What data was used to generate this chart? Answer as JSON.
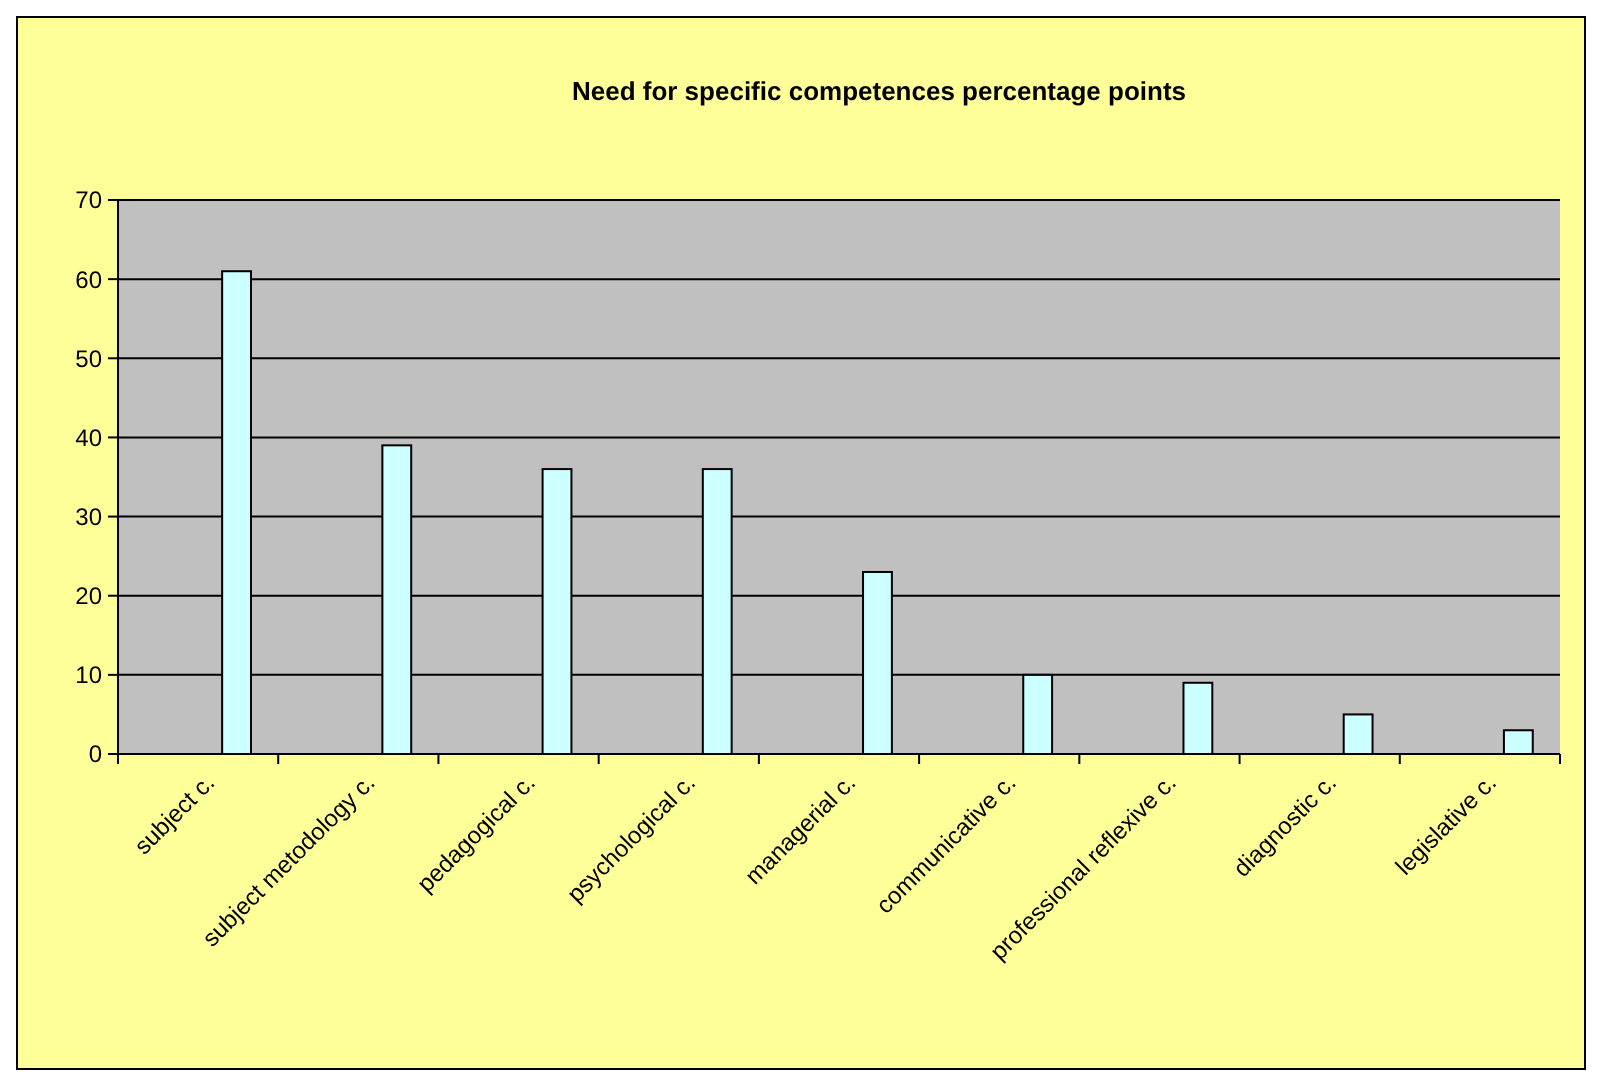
{
  "chart_data": {
    "type": "bar",
    "title": "Need for specific competences percentage points",
    "categories": [
      "subject c.",
      "subject metodology c.",
      "pedagogical c.",
      "psychological c.",
      "managerial c.",
      "communicative c.",
      "professional reflexive c.",
      "diagnostic c.",
      "legislative c."
    ],
    "values": [
      61,
      39,
      36,
      36,
      23,
      10,
      9,
      5,
      3
    ],
    "color": "#ccffff",
    "ylim": [
      0,
      70
    ],
    "yticks": [
      0,
      10,
      20,
      30,
      40,
      50,
      60,
      70
    ],
    "grid": "y"
  }
}
